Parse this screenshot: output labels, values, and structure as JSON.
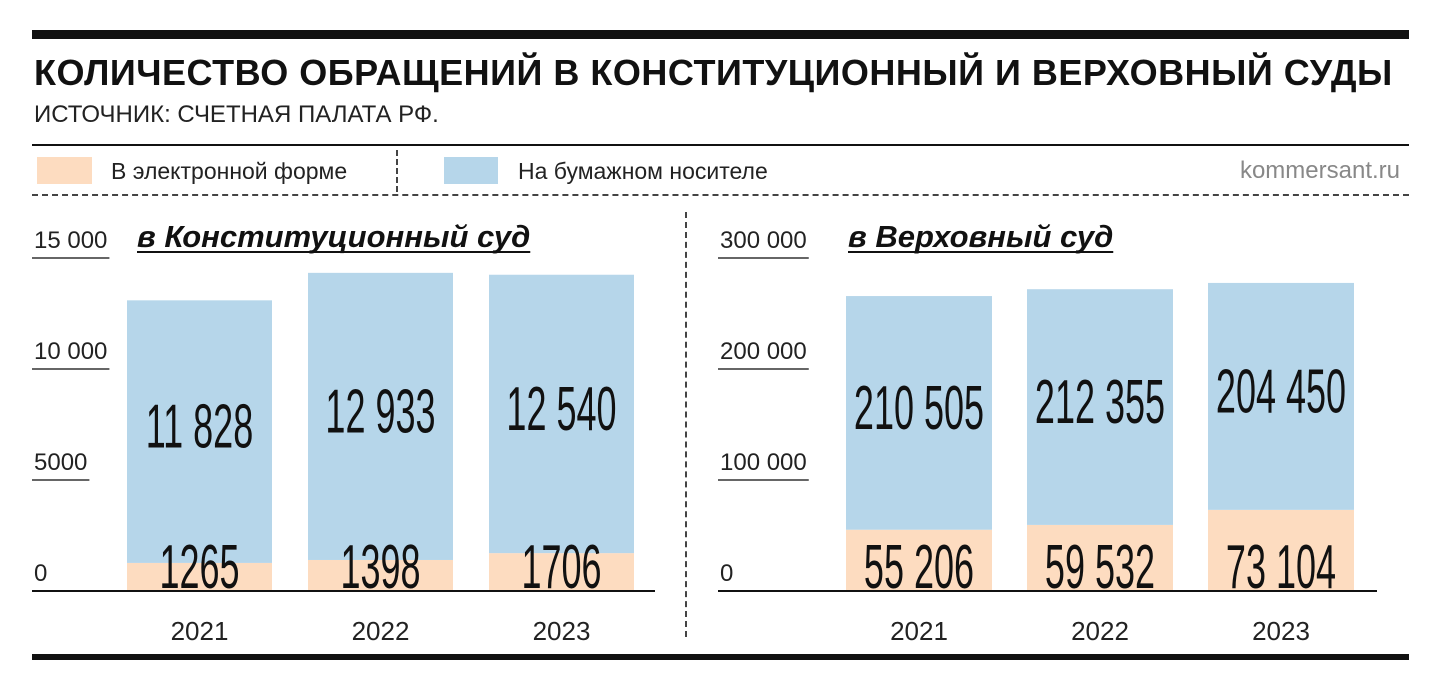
{
  "header": {
    "title": "КОЛИЧЕСТВО ОБРАЩЕНИЙ В КОНСТИТУЦИОННЫЙ И ВЕРХОВНЫЙ СУДЫ",
    "source": "ИСТОЧНИК: СЧЕТНАЯ ПАЛАТА РФ."
  },
  "legend": {
    "electronic": "В электронной форме",
    "paper": "На бумажном носителе"
  },
  "credit": "kommersant.ru",
  "colors": {
    "electronic": "#fddcc0",
    "paper": "#b6d6ea",
    "rule": "#111111"
  },
  "chart_data": [
    {
      "type": "bar",
      "stacked": true,
      "title": "в Конституционный суд",
      "categories": [
        "2021",
        "2022",
        "2023"
      ],
      "series": [
        {
          "name": "В электронной форме",
          "values": [
            1265,
            1398,
            1706
          ],
          "labels": [
            "1265",
            "1398",
            "1706"
          ]
        },
        {
          "name": "На бумажном носителе",
          "values": [
            11828,
            12933,
            12540
          ],
          "labels": [
            "11 828",
            "12 933",
            "12 540"
          ]
        }
      ],
      "yticks": [
        0,
        5000,
        10000,
        15000
      ],
      "ytick_labels": [
        "0",
        "5000",
        "10 000",
        "15 000"
      ],
      "ylim": [
        0,
        15000
      ]
    },
    {
      "type": "bar",
      "stacked": true,
      "title": "в Верховный суд",
      "categories": [
        "2021",
        "2022",
        "2023"
      ],
      "series": [
        {
          "name": "В электронной форме",
          "values": [
            55206,
            59532,
            73104
          ],
          "labels": [
            "55 206",
            "59 532",
            "73 104"
          ]
        },
        {
          "name": "На бумажном носителе",
          "values": [
            210505,
            212355,
            204450
          ],
          "labels": [
            "210 505",
            "212 355",
            "204 450"
          ]
        }
      ],
      "yticks": [
        0,
        100000,
        200000,
        300000
      ],
      "ytick_labels": [
        "0",
        "100 000",
        "200 000",
        "300 000"
      ],
      "ylim": [
        0,
        300000
      ]
    }
  ]
}
